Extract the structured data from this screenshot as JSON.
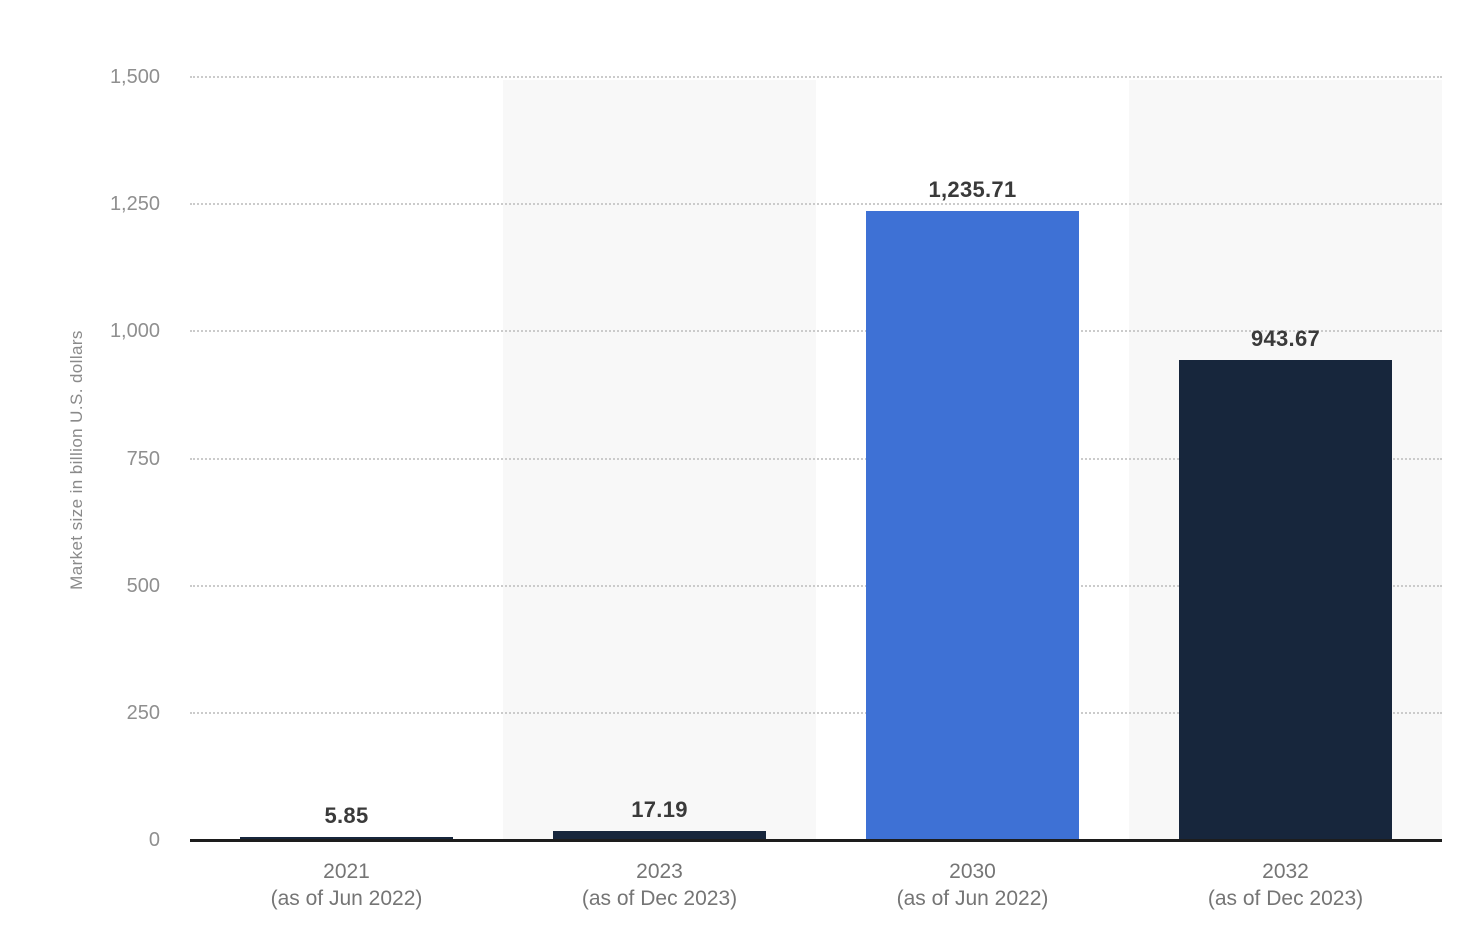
{
  "chart_data": {
    "type": "bar",
    "title": "",
    "xlabel": "",
    "ylabel": "Market size in billion U.S. dollars",
    "ylim": [
      0,
      1500
    ],
    "ytick_step": 250,
    "yticks": [
      "0",
      "250",
      "500",
      "750",
      "1,000",
      "1,250",
      "1,500"
    ],
    "grid": "horizontal-dotted",
    "legend": "none",
    "categories": [
      {
        "line1": "2021",
        "line2": "(as of Jun 2022)"
      },
      {
        "line1": "2023",
        "line2": "(as of Dec 2023)"
      },
      {
        "line1": "2030",
        "line2": "(as of Jun 2022)"
      },
      {
        "line1": "2032",
        "line2": "(as of Dec 2023)"
      }
    ],
    "values": [
      5.85,
      17.19,
      1235.71,
      943.67
    ],
    "value_labels": [
      "5.85",
      "17.19",
      "1,235.71",
      "943.67"
    ],
    "bar_colors": [
      "#17263c",
      "#17263c",
      "#3e71d5",
      "#17263c"
    ],
    "banded_columns": [
      1,
      3
    ],
    "colors": {
      "column_band": "#f8f8f8",
      "gridline": "#cbcbcb",
      "axis_line": "#1d1d1d",
      "tick_label": "#8f8f8f",
      "value_label": "#3a3a3a",
      "axis_title": "#8a8a8a",
      "background": "#ffffff"
    }
  }
}
